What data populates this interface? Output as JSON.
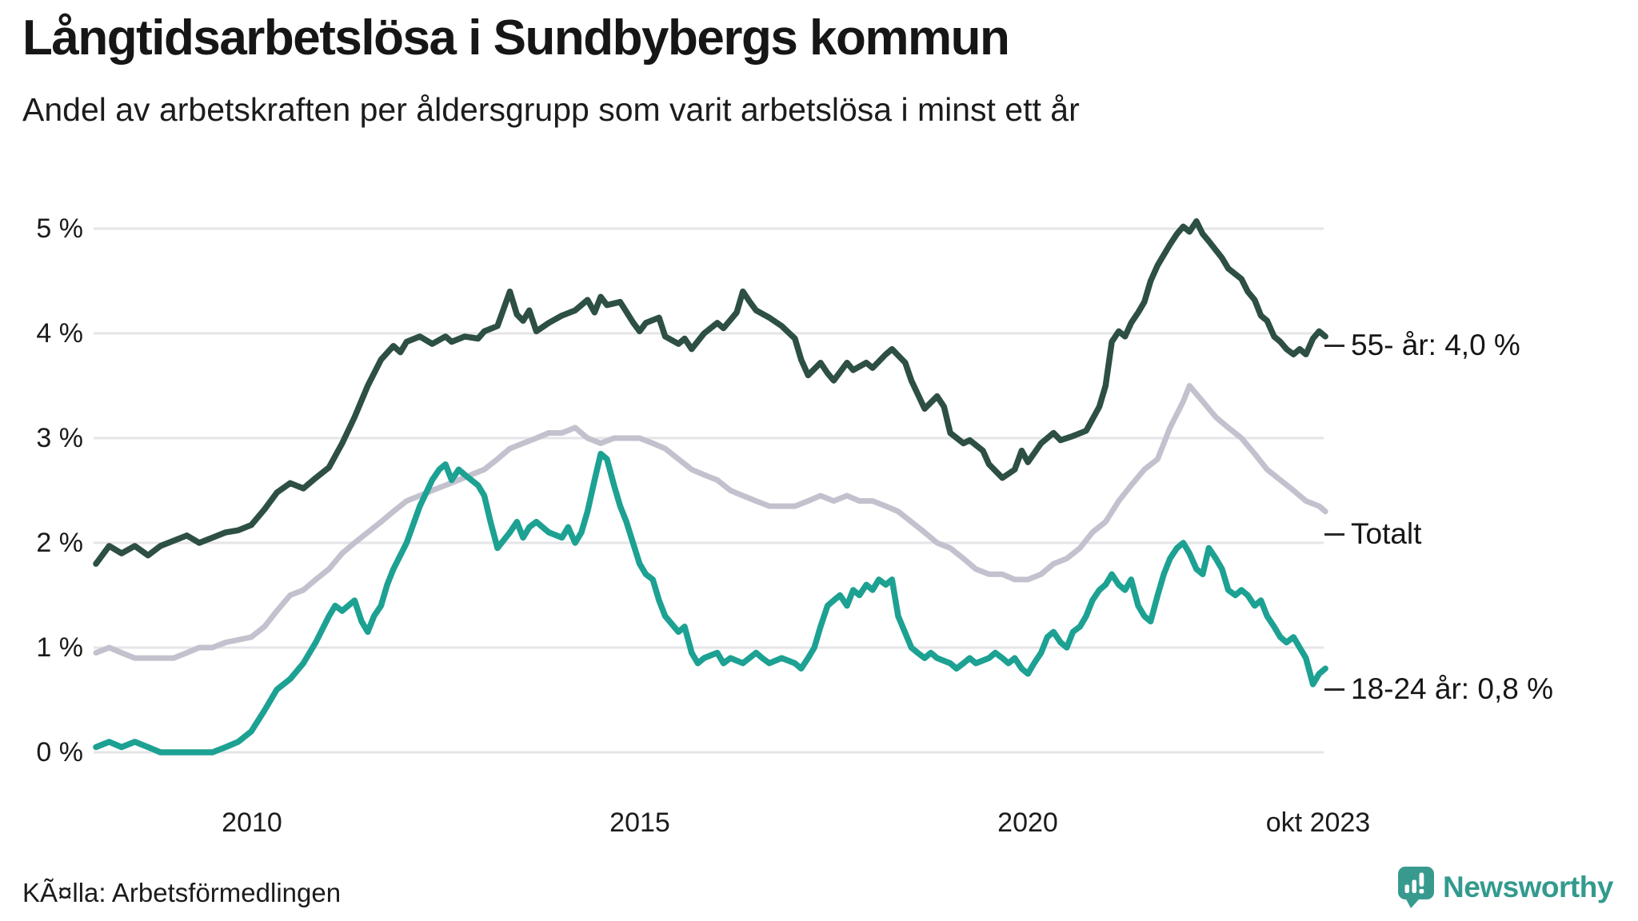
{
  "footer": {
    "source": "KÃ¤lla: Arbetsförmedlingen",
    "logo_text": "Newsworthy",
    "logo_color": "#339a8e"
  },
  "chart_data": {
    "type": "line",
    "title": "Långtidsarbetslösa i Sundbybergs kommun",
    "subtitle": "Andel av arbetskraften per åldersgrupp som varit arbetslösa i minst ett år",
    "grid_color": "#e5e4e8",
    "text_color": "#161616",
    "legend_position": "right-end-labels",
    "x_axis": {
      "range": [
        2008.0,
        2023.83
      ],
      "ticks": [
        {
          "year": 2010,
          "label": "2010"
        },
        {
          "year": 2015,
          "label": "2015"
        },
        {
          "year": 2020,
          "label": "2020"
        },
        {
          "year": 2023.78,
          "label": "okt 2023"
        }
      ]
    },
    "y_axis": {
      "unit": "%",
      "range": [
        0,
        5.2
      ],
      "ticks": [
        {
          "value": 5,
          "label": "5 %"
        },
        {
          "value": 4,
          "label": "4 %"
        },
        {
          "value": 3,
          "label": "3 %"
        },
        {
          "value": 2,
          "label": "2 %"
        },
        {
          "value": 1,
          "label": "1 %"
        },
        {
          "value": 0,
          "label": "0 %"
        }
      ]
    },
    "series": [
      {
        "name": "55- år",
        "end_label": "55- år: 4,0 %",
        "end_value": "4,0 %",
        "color": "#2d4f44",
        "x": [
          2008.0,
          2008.17,
          2008.33,
          2008.5,
          2008.67,
          2008.83,
          2009.0,
          2009.17,
          2009.33,
          2009.5,
          2009.67,
          2009.83,
          2010.0,
          2010.17,
          2010.33,
          2010.5,
          2010.67,
          2010.83,
          2011.0,
          2011.17,
          2011.33,
          2011.5,
          2011.67,
          2011.83,
          2011.92,
          2012.0,
          2012.17,
          2012.33,
          2012.5,
          2012.58,
          2012.75,
          2012.92,
          2013.0,
          2013.17,
          2013.33,
          2013.42,
          2013.5,
          2013.58,
          2013.67,
          2013.83,
          2014.0,
          2014.17,
          2014.33,
          2014.42,
          2014.5,
          2014.58,
          2014.75,
          2014.92,
          2015.0,
          2015.08,
          2015.25,
          2015.33,
          2015.5,
          2015.58,
          2015.67,
          2015.83,
          2016.0,
          2016.08,
          2016.25,
          2016.33,
          2016.42,
          2016.5,
          2016.67,
          2016.83,
          2017.0,
          2017.08,
          2017.17,
          2017.33,
          2017.42,
          2017.5,
          2017.67,
          2017.75,
          2017.92,
          2018.0,
          2018.17,
          2018.25,
          2018.42,
          2018.5,
          2018.67,
          2018.83,
          2018.92,
          2019.0,
          2019.17,
          2019.25,
          2019.42,
          2019.5,
          2019.67,
          2019.83,
          2019.92,
          2020.0,
          2020.17,
          2020.33,
          2020.42,
          2020.58,
          2020.75,
          2020.92,
          2021.0,
          2021.08,
          2021.17,
          2021.25,
          2021.33,
          2021.42,
          2021.5,
          2021.58,
          2021.67,
          2021.83,
          2021.92,
          2022.0,
          2022.08,
          2022.17,
          2022.25,
          2022.33,
          2022.5,
          2022.58,
          2022.75,
          2022.83,
          2022.92,
          2023.0,
          2023.08,
          2023.17,
          2023.25,
          2023.33,
          2023.42,
          2023.5,
          2023.58,
          2023.67,
          2023.75,
          2023.83
        ],
        "values": [
          1.8,
          1.97,
          1.9,
          1.97,
          1.88,
          1.97,
          2.02,
          2.07,
          2.0,
          2.05,
          2.1,
          2.12,
          2.17,
          2.32,
          2.48,
          2.57,
          2.52,
          2.62,
          2.72,
          2.95,
          3.2,
          3.5,
          3.75,
          3.88,
          3.82,
          3.92,
          3.97,
          3.9,
          3.97,
          3.92,
          3.97,
          3.95,
          4.02,
          4.07,
          4.4,
          4.18,
          4.12,
          4.22,
          4.02,
          4.1,
          4.17,
          4.22,
          4.32,
          4.2,
          4.35,
          4.27,
          4.3,
          4.1,
          4.02,
          4.1,
          4.15,
          3.97,
          3.9,
          3.95,
          3.85,
          4.0,
          4.1,
          4.05,
          4.2,
          4.4,
          4.3,
          4.22,
          4.15,
          4.07,
          3.95,
          3.75,
          3.6,
          3.72,
          3.62,
          3.55,
          3.72,
          3.65,
          3.72,
          3.67,
          3.8,
          3.85,
          3.72,
          3.55,
          3.28,
          3.4,
          3.3,
          3.05,
          2.95,
          2.98,
          2.88,
          2.75,
          2.62,
          2.7,
          2.88,
          2.77,
          2.95,
          3.05,
          2.98,
          3.02,
          3.07,
          3.3,
          3.5,
          3.92,
          4.02,
          3.97,
          4.1,
          4.2,
          4.3,
          4.5,
          4.65,
          4.85,
          4.95,
          5.02,
          4.97,
          5.07,
          4.95,
          4.88,
          4.72,
          4.62,
          4.52,
          4.4,
          4.32,
          4.17,
          4.12,
          3.97,
          3.92,
          3.85,
          3.8,
          3.85,
          3.8,
          3.95,
          4.02,
          3.97
        ]
      },
      {
        "name": "Totalt",
        "end_label": "Totalt",
        "end_value": "",
        "color": "#c3c1cd",
        "x": [
          2008.0,
          2008.17,
          2008.33,
          2008.5,
          2008.83,
          2009.0,
          2009.17,
          2009.33,
          2009.5,
          2009.67,
          2010.0,
          2010.17,
          2010.33,
          2010.5,
          2010.67,
          2010.83,
          2011.0,
          2011.17,
          2011.33,
          2011.5,
          2011.67,
          2011.83,
          2012.0,
          2012.17,
          2012.33,
          2012.5,
          2012.67,
          2012.83,
          2013.0,
          2013.17,
          2013.33,
          2013.5,
          2013.67,
          2013.83,
          2014.0,
          2014.17,
          2014.33,
          2014.5,
          2014.67,
          2014.83,
          2015.0,
          2015.17,
          2015.33,
          2015.5,
          2015.67,
          2015.83,
          2016.0,
          2016.17,
          2016.33,
          2016.5,
          2016.67,
          2017.0,
          2017.17,
          2017.33,
          2017.5,
          2017.67,
          2017.83,
          2018.0,
          2018.17,
          2018.33,
          2018.5,
          2018.67,
          2018.83,
          2019.0,
          2019.17,
          2019.33,
          2019.5,
          2019.67,
          2019.83,
          2020.0,
          2020.17,
          2020.33,
          2020.5,
          2020.67,
          2020.83,
          2021.0,
          2021.17,
          2021.33,
          2021.5,
          2021.67,
          2021.83,
          2022.0,
          2022.08,
          2022.25,
          2022.42,
          2022.58,
          2022.75,
          2022.92,
          2023.08,
          2023.25,
          2023.42,
          2023.58,
          2023.75,
          2023.83
        ],
        "values": [
          0.95,
          1.0,
          0.95,
          0.9,
          0.9,
          0.9,
          0.95,
          1.0,
          1.0,
          1.05,
          1.1,
          1.2,
          1.35,
          1.5,
          1.55,
          1.65,
          1.75,
          1.9,
          2.0,
          2.1,
          2.2,
          2.3,
          2.4,
          2.45,
          2.5,
          2.55,
          2.6,
          2.65,
          2.7,
          2.8,
          2.9,
          2.95,
          3.0,
          3.05,
          3.05,
          3.1,
          3.0,
          2.95,
          3.0,
          3.0,
          3.0,
          2.95,
          2.9,
          2.8,
          2.7,
          2.65,
          2.6,
          2.5,
          2.45,
          2.4,
          2.35,
          2.35,
          2.4,
          2.45,
          2.4,
          2.45,
          2.4,
          2.4,
          2.35,
          2.3,
          2.2,
          2.1,
          2.0,
          1.95,
          1.85,
          1.75,
          1.7,
          1.7,
          1.65,
          1.65,
          1.7,
          1.8,
          1.85,
          1.95,
          2.1,
          2.2,
          2.4,
          2.55,
          2.7,
          2.8,
          3.1,
          3.35,
          3.5,
          3.35,
          3.2,
          3.1,
          3.0,
          2.85,
          2.7,
          2.6,
          2.5,
          2.4,
          2.35,
          2.3
        ]
      },
      {
        "name": "18-24 år",
        "end_label": "18-24 år: 0,8 %",
        "end_value": "0,8 %",
        "color": "#1da192",
        "x": [
          2008.0,
          2008.17,
          2008.33,
          2008.5,
          2008.67,
          2008.83,
          2009.0,
          2009.5,
          2009.67,
          2009.83,
          2010.0,
          2010.17,
          2010.33,
          2010.5,
          2010.67,
          2010.83,
          2011.0,
          2011.08,
          2011.17,
          2011.33,
          2011.42,
          2011.5,
          2011.58,
          2011.67,
          2011.75,
          2011.83,
          2012.0,
          2012.17,
          2012.33,
          2012.42,
          2012.5,
          2012.58,
          2012.67,
          2012.75,
          2012.92,
          2013.0,
          2013.08,
          2013.17,
          2013.33,
          2013.42,
          2013.5,
          2013.58,
          2013.67,
          2013.83,
          2014.0,
          2014.08,
          2014.17,
          2014.25,
          2014.33,
          2014.42,
          2014.5,
          2014.58,
          2014.67,
          2014.75,
          2014.83,
          2015.0,
          2015.08,
          2015.17,
          2015.25,
          2015.33,
          2015.5,
          2015.58,
          2015.67,
          2015.75,
          2015.83,
          2016.0,
          2016.08,
          2016.17,
          2016.33,
          2016.5,
          2016.58,
          2016.67,
          2016.83,
          2017.0,
          2017.08,
          2017.17,
          2017.25,
          2017.33,
          2017.42,
          2017.5,
          2017.58,
          2017.67,
          2017.75,
          2017.83,
          2017.92,
          2018.0,
          2018.08,
          2018.17,
          2018.25,
          2018.33,
          2018.5,
          2018.58,
          2018.67,
          2018.75,
          2018.83,
          2019.0,
          2019.08,
          2019.17,
          2019.25,
          2019.33,
          2019.5,
          2019.58,
          2019.67,
          2019.75,
          2019.83,
          2019.92,
          2020.0,
          2020.08,
          2020.17,
          2020.25,
          2020.33,
          2020.42,
          2020.5,
          2020.58,
          2020.67,
          2020.75,
          2020.83,
          2020.92,
          2021.0,
          2021.08,
          2021.17,
          2021.25,
          2021.33,
          2021.42,
          2021.5,
          2021.58,
          2021.67,
          2021.75,
          2021.83,
          2021.92,
          2022.0,
          2022.08,
          2022.17,
          2022.25,
          2022.33,
          2022.42,
          2022.5,
          2022.58,
          2022.67,
          2022.75,
          2022.83,
          2022.92,
          2023.0,
          2023.08,
          2023.17,
          2023.25,
          2023.33,
          2023.42,
          2023.5,
          2023.58,
          2023.67,
          2023.75,
          2023.83
        ],
        "values": [
          0.05,
          0.1,
          0.05,
          0.1,
          0.05,
          0.0,
          0.0,
          0.0,
          0.05,
          0.1,
          0.2,
          0.4,
          0.6,
          0.7,
          0.85,
          1.05,
          1.3,
          1.4,
          1.35,
          1.45,
          1.25,
          1.15,
          1.3,
          1.4,
          1.6,
          1.75,
          2.0,
          2.35,
          2.6,
          2.7,
          2.75,
          2.6,
          2.7,
          2.65,
          2.55,
          2.45,
          2.2,
          1.95,
          2.1,
          2.2,
          2.05,
          2.15,
          2.2,
          2.1,
          2.05,
          2.15,
          2.0,
          2.1,
          2.3,
          2.6,
          2.85,
          2.8,
          2.55,
          2.35,
          2.2,
          1.8,
          1.7,
          1.65,
          1.45,
          1.3,
          1.15,
          1.2,
          0.95,
          0.85,
          0.9,
          0.95,
          0.85,
          0.9,
          0.85,
          0.95,
          0.9,
          0.85,
          0.9,
          0.85,
          0.8,
          0.9,
          1.0,
          1.2,
          1.4,
          1.45,
          1.5,
          1.4,
          1.55,
          1.5,
          1.6,
          1.55,
          1.65,
          1.6,
          1.65,
          1.3,
          1.0,
          0.95,
          0.9,
          0.95,
          0.9,
          0.85,
          0.8,
          0.85,
          0.9,
          0.85,
          0.9,
          0.95,
          0.9,
          0.85,
          0.9,
          0.8,
          0.75,
          0.85,
          0.95,
          1.1,
          1.15,
          1.05,
          1.0,
          1.15,
          1.2,
          1.3,
          1.45,
          1.55,
          1.6,
          1.7,
          1.6,
          1.55,
          1.65,
          1.4,
          1.3,
          1.25,
          1.5,
          1.7,
          1.85,
          1.95,
          2.0,
          1.9,
          1.75,
          1.7,
          1.95,
          1.85,
          1.75,
          1.55,
          1.5,
          1.55,
          1.5,
          1.4,
          1.45,
          1.3,
          1.2,
          1.1,
          1.05,
          1.1,
          1.0,
          0.9,
          0.65,
          0.75,
          0.8
        ]
      }
    ]
  }
}
